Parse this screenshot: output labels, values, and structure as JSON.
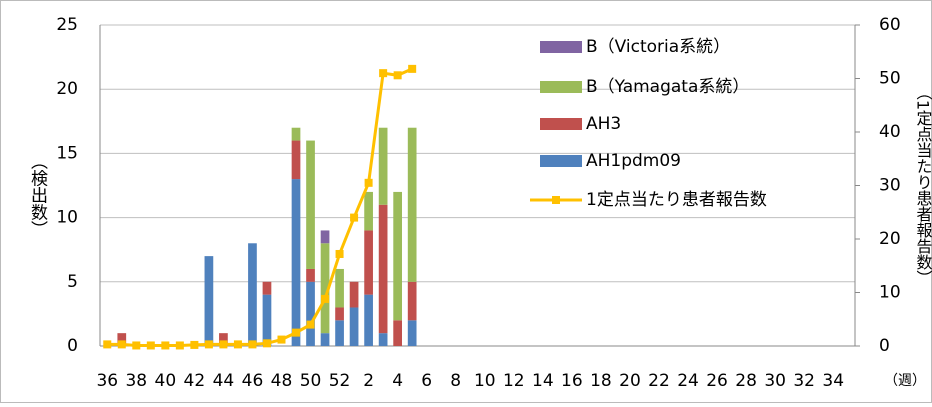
{
  "chart_data": {
    "type": "bar",
    "stacked": true,
    "categories": [
      "36",
      null,
      "38",
      null,
      "40",
      null,
      "42",
      null,
      "44",
      null,
      "46",
      null,
      "48",
      null,
      "50",
      null,
      "52",
      null,
      "2",
      null,
      "4",
      null,
      "6",
      null,
      "8",
      null,
      "10",
      null,
      "12",
      null,
      "14",
      null,
      "16",
      null,
      "18",
      null,
      "20",
      null,
      "22",
      null,
      "24",
      null,
      "26",
      null,
      "28",
      null,
      "30",
      null,
      "32",
      null,
      "34",
      null
    ],
    "series": [
      {
        "name": "B（Victoria系統）",
        "color": "#8064a2",
        "values": [
          0,
          0,
          0,
          0,
          0,
          0,
          0,
          0,
          0,
          0,
          0,
          0,
          0,
          0,
          0,
          1,
          0,
          0,
          0,
          0,
          0,
          0,
          null,
          null,
          null,
          null,
          null,
          null,
          null,
          null,
          null,
          null,
          null,
          null,
          null,
          null,
          null,
          null,
          null,
          null,
          null,
          null,
          null,
          null,
          null,
          null,
          null,
          null,
          null,
          null,
          null,
          null
        ]
      },
      {
        "name": "B（Yamagata系統）",
        "color": "#9bbb59",
        "values": [
          0,
          0,
          0,
          0,
          0,
          0,
          0,
          0,
          0,
          0,
          0,
          0,
          0,
          1,
          10,
          7,
          3,
          0,
          3,
          6,
          10,
          12,
          null,
          null,
          null,
          null,
          null,
          null,
          null,
          null,
          null,
          null,
          null,
          null,
          null,
          null,
          null,
          null,
          null,
          null,
          null,
          null,
          null,
          null,
          null,
          null,
          null,
          null,
          null,
          null,
          null,
          null
        ]
      },
      {
        "name": "AH3",
        "color": "#c0504d",
        "values": [
          0,
          1,
          0,
          0,
          0,
          0,
          0,
          0,
          1,
          0,
          0,
          1,
          0,
          3,
          1,
          0,
          1,
          2,
          5,
          10,
          2,
          3,
          null,
          null,
          null,
          null,
          null,
          null,
          null,
          null,
          null,
          null,
          null,
          null,
          null,
          null,
          null,
          null,
          null,
          null,
          null,
          null,
          null,
          null,
          null,
          null,
          null,
          null,
          null,
          null,
          null,
          null
        ]
      },
      {
        "name": "AH1pdm09",
        "color": "#4f81bd",
        "values": [
          0,
          0,
          0,
          0,
          0,
          0,
          0,
          7,
          0,
          0,
          8,
          4,
          0,
          13,
          5,
          1,
          2,
          3,
          4,
          1,
          0,
          2,
          null,
          null,
          null,
          null,
          null,
          null,
          null,
          null,
          null,
          null,
          null,
          null,
          null,
          null,
          null,
          null,
          null,
          null,
          null,
          null,
          null,
          null,
          null,
          null,
          null,
          null,
          null,
          null,
          null,
          null
        ]
      },
      {
        "name": "1定点当たり患者報告数",
        "color": "#ffc000",
        "type": "line",
        "axis": "y2",
        "values": [
          0.3,
          0.3,
          0.1,
          0.1,
          0.1,
          0.1,
          0.2,
          0.3,
          0.3,
          0.3,
          0.3,
          0.5,
          1.2,
          2.5,
          4,
          8.8,
          17.2,
          24,
          30.5,
          51,
          50.6,
          51.8,
          null,
          null,
          null,
          null,
          null,
          null,
          null,
          null,
          null,
          null,
          null,
          null,
          null,
          null,
          null,
          null,
          null,
          null,
          null,
          null,
          null,
          null,
          null,
          null,
          null,
          null,
          null,
          null,
          null,
          null
        ]
      }
    ],
    "ylim": [
      0,
      25
    ],
    "yticks": [
      0,
      5,
      10,
      15,
      20,
      25
    ],
    "y2lim": [
      0,
      60
    ],
    "y2ticks": [
      0,
      10,
      20,
      30,
      40,
      50,
      60
    ],
    "ylabel": "（検出数）",
    "y2label": "（1定点当たり患者報告数）",
    "xlabel": "（週）",
    "grid": true
  }
}
